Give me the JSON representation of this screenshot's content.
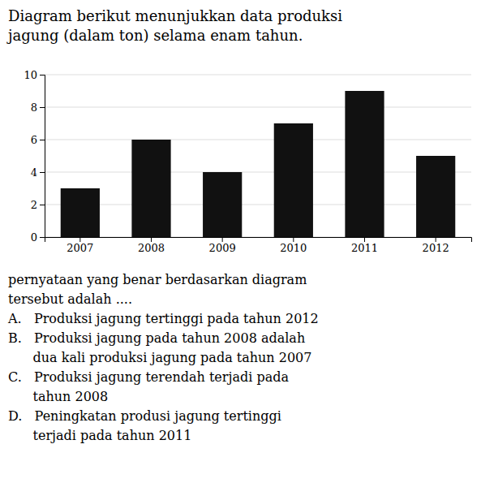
{
  "chart_data": {
    "type": "bar",
    "title": "Diagram berikut menunjukkan data produksi\njagung (dalam ton) selama enam tahun.",
    "categories": [
      "2007",
      "2008",
      "2009",
      "2010",
      "2011",
      "2012"
    ],
    "values": [
      3,
      6,
      4,
      7,
      9,
      5
    ],
    "color": "#111111",
    "ylim": [
      0,
      10
    ],
    "yticks": [
      0,
      2,
      4,
      6,
      8,
      10
    ],
    "grid": true,
    "annotations": [
      "pernyataan yang benar berdasarkan diagram",
      "tersebut adalah ....",
      "A.   Produksi jagung tertinggi pada tahun 2012",
      "B.   Produksi jagung pada tahun 2008 adalah",
      "      dua kali produksi jagung pada tahun 2007",
      "C.   Produksi jagung terendah terjadi pada",
      "      tahun 2008",
      "D.   Peningkatan produsi jagung tertinggi",
      "      terjadi pada tahun 2011"
    ]
  }
}
